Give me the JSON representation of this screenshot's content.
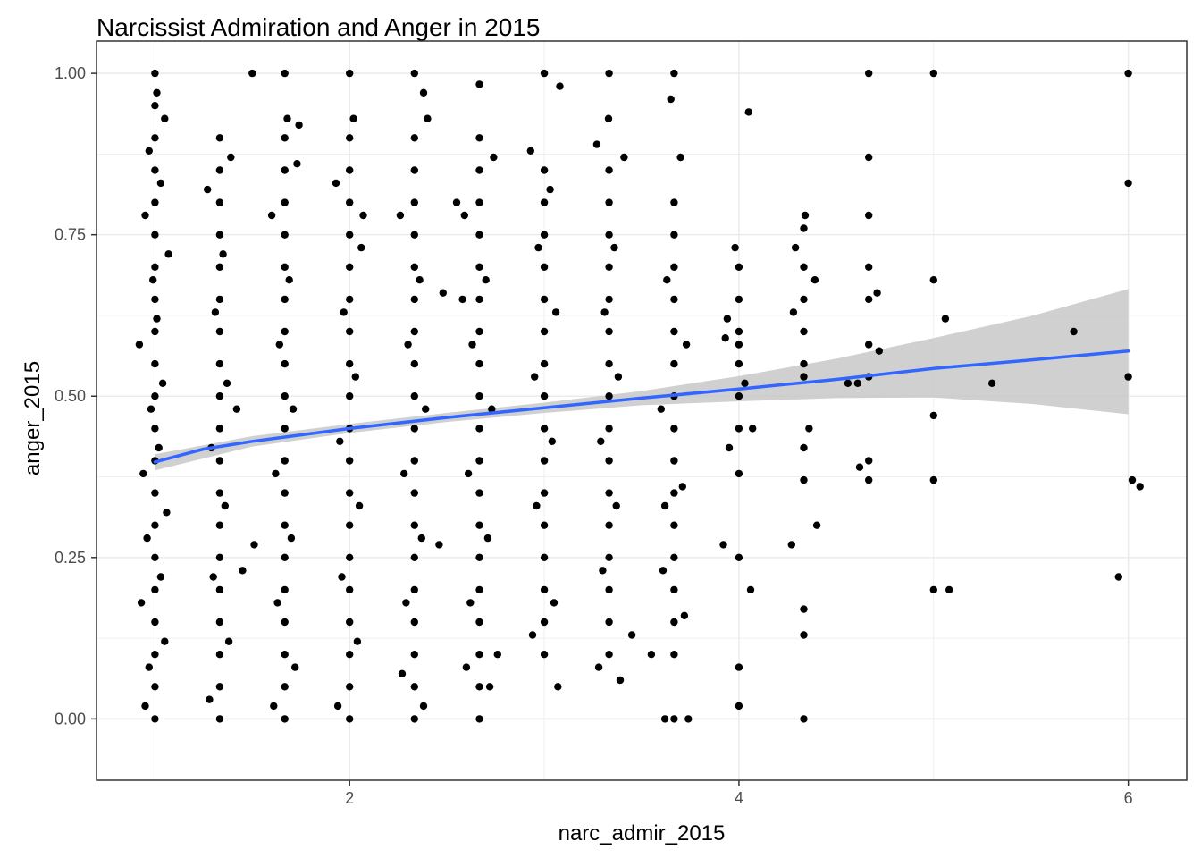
{
  "chart_data": {
    "type": "scatter",
    "title": "Narcissist Admiration and Anger in 2015",
    "xlabel": "narc_admir_2015",
    "ylabel": "anger_2015",
    "xlim": [
      0.7,
      6.3
    ],
    "ylim": [
      -0.095,
      1.05
    ],
    "x_ticks": [
      2,
      4,
      6
    ],
    "x_tick_labels": [
      "2",
      "4",
      "6"
    ],
    "y_ticks": [
      0,
      0.25,
      0.5,
      0.75,
      1
    ],
    "y_tick_labels": [
      "0.00",
      "0.25",
      "0.50",
      "0.75",
      "1.00"
    ],
    "grid": true,
    "legend": "none",
    "colors": {
      "points": "#000000",
      "smooth_line": "#3366FF",
      "confidence_band": "#C8C8C8",
      "grid": "#EBEBEB",
      "panel_border": "#333333"
    },
    "points_note_levels": [
      1.0,
      1.333,
      1.667,
      2.0,
      2.333,
      2.667,
      3.0,
      3.333,
      3.667,
      4.0,
      4.333,
      4.667,
      5.0,
      5.333,
      5.667,
      6.0
    ],
    "points": [
      [
        1.0,
        0.0
      ],
      [
        1.0,
        0.05
      ],
      [
        1.0,
        0.1
      ],
      [
        1.0,
        0.15
      ],
      [
        1.0,
        0.2
      ],
      [
        1.0,
        0.25
      ],
      [
        1.0,
        0.3
      ],
      [
        1.0,
        0.35
      ],
      [
        1.0,
        0.4
      ],
      [
        1.0,
        0.45
      ],
      [
        1.0,
        0.5
      ],
      [
        1.0,
        0.55
      ],
      [
        1.0,
        0.6
      ],
      [
        1.0,
        0.65
      ],
      [
        1.0,
        0.7
      ],
      [
        1.0,
        0.75
      ],
      [
        1.0,
        0.8
      ],
      [
        1.0,
        0.85
      ],
      [
        1.0,
        0.9
      ],
      [
        1.0,
        0.95
      ],
      [
        1.0,
        1.0
      ],
      [
        0.95,
        0.02
      ],
      [
        0.97,
        0.08
      ],
      [
        1.05,
        0.12
      ],
      [
        0.93,
        0.18
      ],
      [
        1.03,
        0.22
      ],
      [
        0.96,
        0.28
      ],
      [
        1.06,
        0.32
      ],
      [
        0.94,
        0.38
      ],
      [
        1.02,
        0.42
      ],
      [
        0.98,
        0.48
      ],
      [
        1.04,
        0.52
      ],
      [
        0.92,
        0.58
      ],
      [
        1.01,
        0.62
      ],
      [
        0.99,
        0.68
      ],
      [
        1.07,
        0.72
      ],
      [
        0.95,
        0.78
      ],
      [
        1.03,
        0.83
      ],
      [
        0.97,
        0.88
      ],
      [
        1.05,
        0.93
      ],
      [
        1.01,
        0.97
      ],
      [
        1.333,
        0.0
      ],
      [
        1.333,
        0.05
      ],
      [
        1.333,
        0.1
      ],
      [
        1.333,
        0.15
      ],
      [
        1.333,
        0.2
      ],
      [
        1.333,
        0.25
      ],
      [
        1.333,
        0.3
      ],
      [
        1.333,
        0.35
      ],
      [
        1.333,
        0.4
      ],
      [
        1.333,
        0.45
      ],
      [
        1.333,
        0.5
      ],
      [
        1.333,
        0.55
      ],
      [
        1.333,
        0.6
      ],
      [
        1.333,
        0.65
      ],
      [
        1.333,
        0.7
      ],
      [
        1.333,
        0.75
      ],
      [
        1.333,
        0.8
      ],
      [
        1.333,
        0.85
      ],
      [
        1.333,
        0.9
      ],
      [
        1.28,
        0.03
      ],
      [
        1.38,
        0.12
      ],
      [
        1.3,
        0.22
      ],
      [
        1.36,
        0.33
      ],
      [
        1.29,
        0.42
      ],
      [
        1.37,
        0.52
      ],
      [
        1.31,
        0.63
      ],
      [
        1.35,
        0.72
      ],
      [
        1.27,
        0.82
      ],
      [
        1.39,
        0.87
      ],
      [
        1.42,
        0.48
      ],
      [
        1.45,
        0.23
      ],
      [
        1.667,
        0.0
      ],
      [
        1.667,
        0.05
      ],
      [
        1.667,
        0.1
      ],
      [
        1.667,
        0.15
      ],
      [
        1.667,
        0.2
      ],
      [
        1.667,
        0.25
      ],
      [
        1.667,
        0.3
      ],
      [
        1.667,
        0.35
      ],
      [
        1.667,
        0.4
      ],
      [
        1.667,
        0.45
      ],
      [
        1.667,
        0.5
      ],
      [
        1.667,
        0.55
      ],
      [
        1.667,
        0.6
      ],
      [
        1.667,
        0.65
      ],
      [
        1.667,
        0.7
      ],
      [
        1.667,
        0.75
      ],
      [
        1.667,
        0.8
      ],
      [
        1.667,
        0.85
      ],
      [
        1.667,
        0.9
      ],
      [
        1.667,
        1.0
      ],
      [
        1.61,
        0.02
      ],
      [
        1.72,
        0.08
      ],
      [
        1.63,
        0.18
      ],
      [
        1.7,
        0.28
      ],
      [
        1.62,
        0.38
      ],
      [
        1.71,
        0.48
      ],
      [
        1.64,
        0.58
      ],
      [
        1.69,
        0.68
      ],
      [
        1.6,
        0.78
      ],
      [
        1.73,
        0.86
      ],
      [
        1.68,
        0.93
      ],
      [
        1.74,
        0.92
      ],
      [
        1.51,
        0.27
      ],
      [
        1.5,
        1.0
      ],
      [
        2.0,
        0.0
      ],
      [
        2.0,
        0.05
      ],
      [
        2.0,
        0.1
      ],
      [
        2.0,
        0.15
      ],
      [
        2.0,
        0.2
      ],
      [
        2.0,
        0.25
      ],
      [
        2.0,
        0.3
      ],
      [
        2.0,
        0.35
      ],
      [
        2.0,
        0.4
      ],
      [
        2.0,
        0.45
      ],
      [
        2.0,
        0.5
      ],
      [
        2.0,
        0.55
      ],
      [
        2.0,
        0.6
      ],
      [
        2.0,
        0.65
      ],
      [
        2.0,
        0.7
      ],
      [
        2.0,
        0.75
      ],
      [
        2.0,
        0.8
      ],
      [
        2.0,
        0.85
      ],
      [
        2.0,
        0.9
      ],
      [
        2.0,
        1.0
      ],
      [
        1.94,
        0.02
      ],
      [
        2.04,
        0.12
      ],
      [
        1.96,
        0.22
      ],
      [
        2.05,
        0.33
      ],
      [
        1.95,
        0.43
      ],
      [
        2.03,
        0.53
      ],
      [
        1.97,
        0.63
      ],
      [
        2.06,
        0.73
      ],
      [
        1.93,
        0.83
      ],
      [
        2.02,
        0.93
      ],
      [
        2.07,
        0.78
      ],
      [
        2.333,
        0.0
      ],
      [
        2.333,
        0.05
      ],
      [
        2.333,
        0.1
      ],
      [
        2.333,
        0.15
      ],
      [
        2.333,
        0.2
      ],
      [
        2.333,
        0.25
      ],
      [
        2.333,
        0.3
      ],
      [
        2.333,
        0.35
      ],
      [
        2.333,
        0.4
      ],
      [
        2.333,
        0.45
      ],
      [
        2.333,
        0.5
      ],
      [
        2.333,
        0.55
      ],
      [
        2.333,
        0.6
      ],
      [
        2.333,
        0.65
      ],
      [
        2.333,
        0.7
      ],
      [
        2.333,
        0.75
      ],
      [
        2.333,
        0.8
      ],
      [
        2.333,
        0.85
      ],
      [
        2.333,
        0.9
      ],
      [
        2.333,
        1.0
      ],
      [
        2.27,
        0.07
      ],
      [
        2.38,
        0.02
      ],
      [
        2.29,
        0.18
      ],
      [
        2.37,
        0.28
      ],
      [
        2.28,
        0.38
      ],
      [
        2.39,
        0.48
      ],
      [
        2.3,
        0.58
      ],
      [
        2.36,
        0.68
      ],
      [
        2.26,
        0.78
      ],
      [
        2.4,
        0.93
      ],
      [
        2.38,
        0.97
      ],
      [
        2.46,
        0.27
      ],
      [
        2.48,
        0.66
      ],
      [
        2.55,
        0.8
      ],
      [
        2.58,
        0.65
      ],
      [
        2.667,
        0.0
      ],
      [
        2.667,
        0.05
      ],
      [
        2.667,
        0.1
      ],
      [
        2.667,
        0.15
      ],
      [
        2.667,
        0.2
      ],
      [
        2.667,
        0.25
      ],
      [
        2.667,
        0.3
      ],
      [
        2.667,
        0.35
      ],
      [
        2.667,
        0.4
      ],
      [
        2.667,
        0.45
      ],
      [
        2.667,
        0.5
      ],
      [
        2.667,
        0.55
      ],
      [
        2.667,
        0.6
      ],
      [
        2.667,
        0.65
      ],
      [
        2.667,
        0.7
      ],
      [
        2.667,
        0.75
      ],
      [
        2.667,
        0.8
      ],
      [
        2.667,
        0.85
      ],
      [
        2.667,
        0.9
      ],
      [
        2.667,
        0.983
      ],
      [
        2.6,
        0.08
      ],
      [
        2.72,
        0.05
      ],
      [
        2.62,
        0.18
      ],
      [
        2.71,
        0.28
      ],
      [
        2.61,
        0.38
      ],
      [
        2.73,
        0.48
      ],
      [
        2.63,
        0.58
      ],
      [
        2.7,
        0.68
      ],
      [
        2.59,
        0.78
      ],
      [
        2.74,
        0.87
      ],
      [
        2.76,
        0.1
      ],
      [
        3.0,
        0.1
      ],
      [
        3.0,
        0.15
      ],
      [
        3.0,
        0.2
      ],
      [
        3.0,
        0.25
      ],
      [
        3.0,
        0.3
      ],
      [
        3.0,
        0.35
      ],
      [
        3.0,
        0.4
      ],
      [
        3.0,
        0.45
      ],
      [
        3.0,
        0.5
      ],
      [
        3.0,
        0.55
      ],
      [
        3.0,
        0.6
      ],
      [
        3.0,
        0.65
      ],
      [
        3.0,
        0.7
      ],
      [
        3.0,
        0.75
      ],
      [
        3.0,
        0.8
      ],
      [
        3.0,
        0.85
      ],
      [
        3.0,
        1.0
      ],
      [
        2.94,
        0.13
      ],
      [
        3.05,
        0.18
      ],
      [
        2.96,
        0.33
      ],
      [
        3.04,
        0.43
      ],
      [
        2.95,
        0.53
      ],
      [
        3.06,
        0.63
      ],
      [
        2.97,
        0.73
      ],
      [
        3.03,
        0.82
      ],
      [
        2.93,
        0.88
      ],
      [
        3.08,
        0.98
      ],
      [
        3.07,
        0.05
      ],
      [
        3.333,
        0.1
      ],
      [
        3.333,
        0.15
      ],
      [
        3.333,
        0.2
      ],
      [
        3.333,
        0.25
      ],
      [
        3.333,
        0.3
      ],
      [
        3.333,
        0.35
      ],
      [
        3.333,
        0.4
      ],
      [
        3.333,
        0.45
      ],
      [
        3.333,
        0.5
      ],
      [
        3.333,
        0.55
      ],
      [
        3.333,
        0.6
      ],
      [
        3.333,
        0.65
      ],
      [
        3.333,
        0.7
      ],
      [
        3.333,
        0.75
      ],
      [
        3.333,
        0.8
      ],
      [
        3.333,
        0.85
      ],
      [
        3.333,
        1.0
      ],
      [
        3.28,
        0.08
      ],
      [
        3.39,
        0.06
      ],
      [
        3.3,
        0.23
      ],
      [
        3.37,
        0.33
      ],
      [
        3.29,
        0.43
      ],
      [
        3.38,
        0.53
      ],
      [
        3.31,
        0.63
      ],
      [
        3.36,
        0.73
      ],
      [
        3.27,
        0.89
      ],
      [
        3.41,
        0.87
      ],
      [
        3.33,
        0.93
      ],
      [
        3.45,
        0.13
      ],
      [
        3.55,
        0.1
      ],
      [
        3.667,
        0.0
      ],
      [
        3.667,
        0.1
      ],
      [
        3.667,
        0.15
      ],
      [
        3.667,
        0.2
      ],
      [
        3.667,
        0.25
      ],
      [
        3.667,
        0.3
      ],
      [
        3.667,
        0.35
      ],
      [
        3.667,
        0.4
      ],
      [
        3.667,
        0.45
      ],
      [
        3.667,
        0.5
      ],
      [
        3.667,
        0.55
      ],
      [
        3.667,
        0.6
      ],
      [
        3.667,
        0.65
      ],
      [
        3.667,
        0.7
      ],
      [
        3.667,
        0.75
      ],
      [
        3.667,
        0.8
      ],
      [
        3.667,
        1.0
      ],
      [
        3.61,
        0.23
      ],
      [
        3.72,
        0.16
      ],
      [
        3.62,
        0.33
      ],
      [
        3.71,
        0.36
      ],
      [
        3.6,
        0.48
      ],
      [
        3.73,
        0.58
      ],
      [
        3.63,
        0.68
      ],
      [
        3.7,
        0.87
      ],
      [
        3.65,
        0.96
      ],
      [
        3.62,
        0.0
      ],
      [
        3.74,
        0.0
      ],
      [
        4.0,
        0.02
      ],
      [
        4.0,
        0.08
      ],
      [
        4.0,
        0.25
      ],
      [
        4.0,
        0.38
      ],
      [
        4.0,
        0.45
      ],
      [
        4.0,
        0.5
      ],
      [
        4.0,
        0.55
      ],
      [
        4.0,
        0.58
      ],
      [
        4.0,
        0.6
      ],
      [
        4.0,
        0.65
      ],
      [
        4.0,
        0.7
      ],
      [
        3.92,
        0.27
      ],
      [
        4.06,
        0.2
      ],
      [
        3.95,
        0.42
      ],
      [
        4.03,
        0.52
      ],
      [
        3.94,
        0.62
      ],
      [
        4.05,
        0.94
      ],
      [
        3.98,
        0.73
      ],
      [
        4.07,
        0.45
      ],
      [
        3.93,
        0.59
      ],
      [
        4.333,
        0.0
      ],
      [
        4.333,
        0.13
      ],
      [
        4.333,
        0.17
      ],
      [
        4.333,
        0.37
      ],
      [
        4.333,
        0.42
      ],
      [
        4.333,
        0.53
      ],
      [
        4.333,
        0.55
      ],
      [
        4.333,
        0.6
      ],
      [
        4.333,
        0.65
      ],
      [
        4.333,
        0.7
      ],
      [
        4.333,
        0.76
      ],
      [
        4.27,
        0.27
      ],
      [
        4.4,
        0.3
      ],
      [
        4.28,
        0.63
      ],
      [
        4.39,
        0.68
      ],
      [
        4.34,
        0.78
      ],
      [
        4.29,
        0.73
      ],
      [
        4.36,
        0.45
      ],
      [
        4.667,
        0.37
      ],
      [
        4.667,
        0.4
      ],
      [
        4.667,
        0.53
      ],
      [
        4.667,
        0.58
      ],
      [
        4.667,
        0.65
      ],
      [
        4.667,
        0.7
      ],
      [
        4.667,
        0.78
      ],
      [
        4.667,
        0.87
      ],
      [
        4.667,
        1.0
      ],
      [
        4.61,
        0.52
      ],
      [
        4.72,
        0.57
      ],
      [
        4.62,
        0.39
      ],
      [
        4.71,
        0.66
      ],
      [
        4.56,
        0.52
      ],
      [
        5.0,
        0.2
      ],
      [
        5.0,
        0.37
      ],
      [
        5.0,
        0.47
      ],
      [
        5.0,
        0.68
      ],
      [
        5.0,
        1.0
      ],
      [
        5.06,
        0.62
      ],
      [
        5.08,
        0.2
      ],
      [
        5.3,
        0.52
      ],
      [
        5.72,
        0.6
      ],
      [
        5.95,
        0.22
      ],
      [
        6.0,
        0.53
      ],
      [
        6.0,
        1.0
      ],
      [
        6.0,
        0.83
      ],
      [
        6.02,
        0.37
      ],
      [
        6.06,
        0.36
      ]
    ],
    "smooth_line": {
      "x": [
        1.0,
        1.25,
        1.5,
        1.75,
        2.0,
        2.5,
        3.0,
        3.5,
        4.0,
        4.5,
        5.0,
        5.5,
        6.0
      ],
      "y": [
        0.398,
        0.418,
        0.43,
        0.44,
        0.45,
        0.467,
        0.482,
        0.497,
        0.511,
        0.526,
        0.543,
        0.556,
        0.57
      ]
    },
    "confidence_band": {
      "x": [
        1.0,
        1.5,
        2.0,
        2.5,
        3.0,
        3.5,
        4.0,
        4.5,
        5.0,
        5.5,
        6.0
      ],
      "lower": [
        0.385,
        0.422,
        0.443,
        0.46,
        0.474,
        0.486,
        0.492,
        0.497,
        0.498,
        0.488,
        0.472
      ],
      "upper": [
        0.41,
        0.438,
        0.457,
        0.474,
        0.49,
        0.508,
        0.531,
        0.558,
        0.59,
        0.624,
        0.666
      ]
    }
  }
}
